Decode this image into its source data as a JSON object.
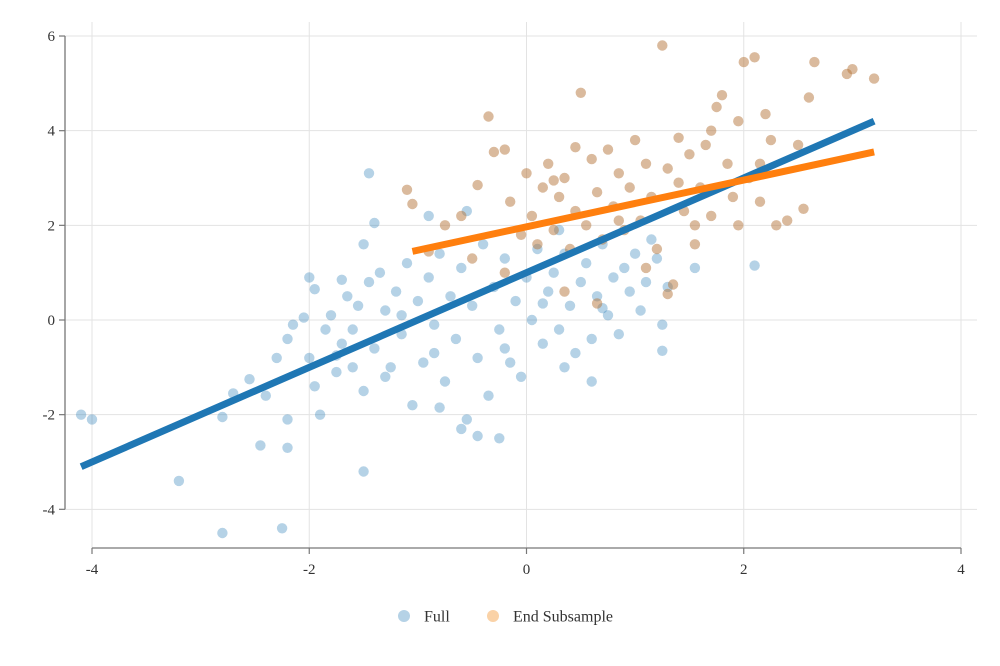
{
  "chart_data": {
    "type": "scatter",
    "title": "",
    "xlabel": "",
    "ylabel": "",
    "xlim": [
      -4.1,
      4.0
    ],
    "ylim": [
      -4.8,
      6.3
    ],
    "x_ticks": [
      -4,
      -2,
      0,
      2,
      4
    ],
    "y_ticks": [
      -4,
      -2,
      0,
      2,
      4,
      6
    ],
    "x_tick_labels": [
      "-4",
      "-2",
      "0",
      "2",
      "4"
    ],
    "y_tick_labels": [
      "-4",
      "-2",
      "0",
      "2",
      "4",
      "6"
    ],
    "grid": true,
    "legend_position": "bottom-center",
    "series": [
      {
        "name": "Full",
        "color": "#1f77b4",
        "points": [
          [
            -4.1,
            -2.0
          ],
          [
            -4.0,
            -2.1
          ],
          [
            -3.2,
            -3.4
          ],
          [
            -2.8,
            -4.5
          ],
          [
            -2.25,
            -4.4
          ],
          [
            -2.2,
            -2.7
          ],
          [
            -2.45,
            -2.65
          ],
          [
            -2.8,
            -2.05
          ],
          [
            -2.7,
            -1.55
          ],
          [
            -2.55,
            -1.25
          ],
          [
            -2.4,
            -1.6
          ],
          [
            -2.2,
            -2.1
          ],
          [
            -2.3,
            -0.8
          ],
          [
            -2.2,
            -0.4
          ],
          [
            -2.15,
            -0.1
          ],
          [
            -2.05,
            0.05
          ],
          [
            -2.0,
            -0.8
          ],
          [
            -1.95,
            -1.4
          ],
          [
            -1.9,
            -2.0
          ],
          [
            -1.85,
            -0.2
          ],
          [
            -1.8,
            0.1
          ],
          [
            -1.75,
            -1.1
          ],
          [
            -1.7,
            -0.5
          ],
          [
            -1.65,
            0.5
          ],
          [
            -1.6,
            -0.2
          ],
          [
            -1.55,
            0.3
          ],
          [
            -1.5,
            -1.5
          ],
          [
            -1.45,
            0.8
          ],
          [
            -1.4,
            -0.6
          ],
          [
            -1.35,
            1.0
          ],
          [
            -1.3,
            0.2
          ],
          [
            -1.25,
            -1.0
          ],
          [
            -1.2,
            0.6
          ],
          [
            -1.15,
            -0.3
          ],
          [
            -1.1,
            1.2
          ],
          [
            -1.05,
            -1.8
          ],
          [
            -1.0,
            0.4
          ],
          [
            -0.95,
            -0.9
          ],
          [
            -0.9,
            0.9
          ],
          [
            -0.85,
            -0.1
          ],
          [
            -0.8,
            1.4
          ],
          [
            -0.75,
            -1.3
          ],
          [
            -0.7,
            0.5
          ],
          [
            -0.65,
            -0.4
          ],
          [
            -0.6,
            1.1
          ],
          [
            -0.55,
            -2.1
          ],
          [
            -0.5,
            0.3
          ],
          [
            -0.45,
            -0.8
          ],
          [
            -0.4,
            1.6
          ],
          [
            -0.35,
            -1.6
          ],
          [
            -0.3,
            0.7
          ],
          [
            -0.25,
            -0.2
          ],
          [
            -0.2,
            1.3
          ],
          [
            -0.15,
            -0.9
          ],
          [
            -0.1,
            0.4
          ],
          [
            -0.05,
            -1.2
          ],
          [
            0.0,
            0.9
          ],
          [
            0.05,
            0.0
          ],
          [
            0.1,
            1.5
          ],
          [
            0.15,
            -0.5
          ],
          [
            0.2,
            0.6
          ],
          [
            0.25,
            1.0
          ],
          [
            0.3,
            -0.2
          ],
          [
            0.35,
            1.4
          ],
          [
            0.4,
            0.3
          ],
          [
            0.45,
            -0.7
          ],
          [
            0.5,
            0.8
          ],
          [
            0.55,
            1.2
          ],
          [
            0.6,
            -0.4
          ],
          [
            0.65,
            0.5
          ],
          [
            0.7,
            1.6
          ],
          [
            0.75,
            0.1
          ],
          [
            0.8,
            0.9
          ],
          [
            0.85,
            -0.3
          ],
          [
            0.9,
            1.1
          ],
          [
            0.95,
            0.6
          ],
          [
            1.0,
            1.4
          ],
          [
            1.05,
            0.2
          ],
          [
            1.1,
            0.8
          ],
          [
            1.15,
            1.7
          ],
          [
            1.2,
            1.3
          ],
          [
            1.25,
            -0.1
          ],
          [
            1.25,
            -0.65
          ],
          [
            1.3,
            0.7
          ],
          [
            1.55,
            1.1
          ],
          [
            2.1,
            1.15
          ],
          [
            -1.45,
            3.1
          ],
          [
            -1.4,
            2.05
          ],
          [
            -1.5,
            1.6
          ],
          [
            -0.55,
            2.3
          ],
          [
            -0.9,
            2.2
          ],
          [
            -0.6,
            -2.3
          ],
          [
            -0.45,
            -2.45
          ],
          [
            -0.25,
            -2.5
          ],
          [
            -1.5,
            -3.2
          ],
          [
            -2.0,
            0.9
          ],
          [
            -1.95,
            0.65
          ],
          [
            -1.7,
            0.85
          ],
          [
            0.35,
            -1.0
          ],
          [
            0.6,
            -1.3
          ],
          [
            -0.8,
            -1.85
          ],
          [
            -0.85,
            -0.7
          ],
          [
            -1.15,
            0.1
          ],
          [
            -1.6,
            -1.0
          ],
          [
            -1.75,
            -0.75
          ],
          [
            -1.3,
            -1.2
          ],
          [
            0.15,
            0.35
          ],
          [
            -0.2,
            -0.6
          ],
          [
            0.7,
            0.25
          ],
          [
            0.3,
            1.9
          ]
        ]
      },
      {
        "name": "End Subsample",
        "color": "#f28e2b",
        "points": [
          [
            -1.1,
            2.75
          ],
          [
            -1.05,
            2.45
          ],
          [
            -0.9,
            1.45
          ],
          [
            -0.75,
            2.0
          ],
          [
            -0.6,
            2.2
          ],
          [
            -0.45,
            2.85
          ],
          [
            -0.35,
            4.3
          ],
          [
            -0.3,
            3.55
          ],
          [
            -0.2,
            3.6
          ],
          [
            -0.15,
            2.5
          ],
          [
            -0.05,
            1.8
          ],
          [
            0.0,
            3.1
          ],
          [
            0.05,
            2.2
          ],
          [
            0.1,
            1.6
          ],
          [
            0.15,
            2.8
          ],
          [
            0.2,
            3.3
          ],
          [
            0.25,
            1.9
          ],
          [
            0.3,
            2.6
          ],
          [
            0.35,
            3.0
          ],
          [
            0.4,
            1.5
          ],
          [
            0.45,
            2.3
          ],
          [
            0.5,
            4.8
          ],
          [
            0.55,
            2.0
          ],
          [
            0.6,
            3.4
          ],
          [
            0.65,
            2.7
          ],
          [
            0.7,
            1.7
          ],
          [
            0.75,
            3.6
          ],
          [
            0.8,
            2.4
          ],
          [
            0.85,
            3.1
          ],
          [
            0.9,
            1.9
          ],
          [
            0.95,
            2.8
          ],
          [
            1.0,
            3.8
          ],
          [
            1.05,
            2.1
          ],
          [
            1.1,
            3.3
          ],
          [
            1.15,
            2.6
          ],
          [
            1.2,
            1.5
          ],
          [
            1.25,
            5.8
          ],
          [
            1.3,
            3.2
          ],
          [
            1.35,
            0.75
          ],
          [
            1.4,
            2.9
          ],
          [
            1.45,
            2.3
          ],
          [
            1.5,
            3.5
          ],
          [
            1.55,
            1.6
          ],
          [
            1.6,
            2.8
          ],
          [
            1.65,
            3.7
          ],
          [
            1.7,
            2.2
          ],
          [
            1.75,
            4.5
          ],
          [
            1.8,
            4.75
          ],
          [
            1.85,
            3.3
          ],
          [
            1.9,
            2.6
          ],
          [
            1.95,
            4.2
          ],
          [
            2.0,
            5.45
          ],
          [
            2.05,
            3.0
          ],
          [
            2.1,
            5.55
          ],
          [
            2.15,
            2.5
          ],
          [
            2.2,
            4.35
          ],
          [
            2.25,
            3.8
          ],
          [
            2.3,
            2.0
          ],
          [
            2.4,
            2.1
          ],
          [
            2.5,
            3.7
          ],
          [
            2.55,
            2.35
          ],
          [
            2.6,
            4.7
          ],
          [
            2.65,
            5.45
          ],
          [
            2.95,
            5.2
          ],
          [
            3.0,
            5.3
          ],
          [
            3.2,
            5.1
          ],
          [
            1.3,
            0.55
          ],
          [
            1.95,
            2.0
          ],
          [
            0.25,
            2.95
          ],
          [
            0.85,
            2.1
          ],
          [
            1.1,
            1.1
          ],
          [
            0.65,
            0.35
          ],
          [
            -0.5,
            1.3
          ],
          [
            -0.2,
            1.0
          ],
          [
            0.35,
            0.6
          ],
          [
            1.55,
            2.0
          ],
          [
            2.15,
            3.3
          ],
          [
            1.7,
            4.0
          ],
          [
            0.45,
            3.65
          ],
          [
            1.4,
            3.85
          ]
        ]
      }
    ],
    "fit_lines": [
      {
        "series": "Full",
        "color": "#1f77b4",
        "x": [
          -4.1,
          3.2
        ],
        "y": [
          -3.1,
          4.2
        ]
      },
      {
        "series": "End Subsample",
        "color": "#ff7f0e",
        "x": [
          -1.05,
          3.2
        ],
        "y": [
          1.45,
          3.55
        ]
      }
    ]
  }
}
